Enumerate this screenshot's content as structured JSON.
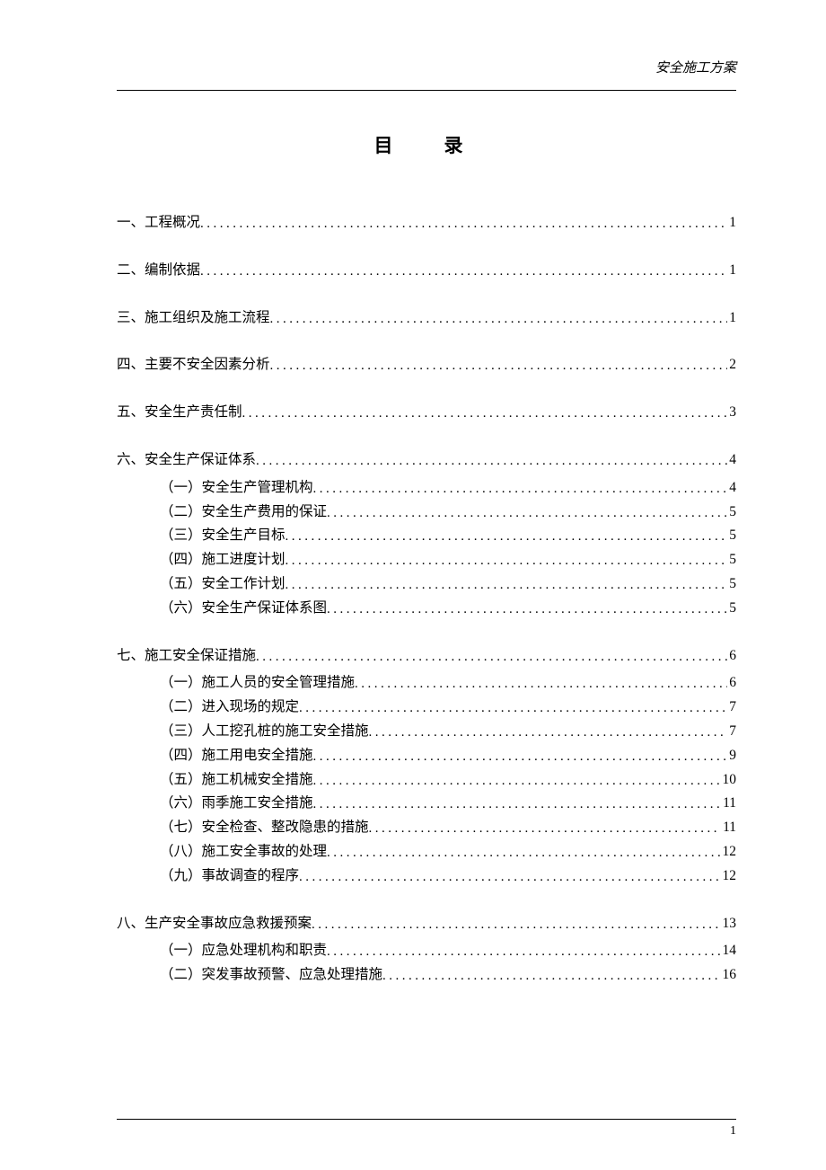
{
  "document": {
    "running_head": "安全施工方案",
    "title": "目　录",
    "page_number": "1",
    "colors": {
      "text": "#000000",
      "background": "#ffffff",
      "rule": "#000000"
    },
    "typography": {
      "body_family": "SimSun",
      "body_size_pt": 12,
      "title_size_pt": 16,
      "title_weight": "bold",
      "running_head_style": "italic"
    }
  },
  "toc": [
    {
      "level": 0,
      "label": "一、工程概况",
      "page": "1",
      "children": []
    },
    {
      "level": 0,
      "label": "二、编制依据",
      "page": "1",
      "children": []
    },
    {
      "level": 0,
      "label": "三、施工组织及施工流程",
      "page": "1",
      "children": []
    },
    {
      "level": 0,
      "label": "四、主要不安全因素分析",
      "page": "2",
      "children": []
    },
    {
      "level": 0,
      "label": "五、安全生产责任制",
      "page": "3",
      "children": []
    },
    {
      "level": 0,
      "label": "六、安全生产保证体系",
      "page": "4",
      "children": [
        {
          "level": 1,
          "label": "（一）安全生产管理机构",
          "page": "4"
        },
        {
          "level": 1,
          "label": "（二）安全生产费用的保证 ",
          "page": "5"
        },
        {
          "level": 1,
          "label": "（三）安全生产目标 ",
          "page": "5"
        },
        {
          "level": 1,
          "label": "（四）施工进度计划 ",
          "page": "5"
        },
        {
          "level": 1,
          "label": "（五）安全工作计划 ",
          "page": "5"
        },
        {
          "level": 1,
          "label": "（六）安全生产保证体系图 ",
          "page": "5"
        }
      ]
    },
    {
      "level": 0,
      "label": "七、施工安全保证措施",
      "page": "6",
      "children": [
        {
          "level": 1,
          "label": "（一）施工人员的安全管理措施",
          "page": "6"
        },
        {
          "level": 1,
          "label": "（二）进入现场的规定 ",
          "page": "7"
        },
        {
          "level": 1,
          "label": "（三）人工挖孔桩的施工安全措施",
          "page": "7"
        },
        {
          "level": 1,
          "label": "（四）施工用电安全措施",
          "page": "9"
        },
        {
          "level": 1,
          "label": "（五）施工机械安全措施",
          "page": "10"
        },
        {
          "level": 1,
          "label": "（六）雨季施工安全措施",
          "page": "11"
        },
        {
          "level": 1,
          "label": "（七）安全检查、整改隐患的措施",
          "page": "11"
        },
        {
          "level": 1,
          "label": "（八）施工安全事故的处理 ",
          "page": "12"
        },
        {
          "level": 1,
          "label": "（九）事故调查的程序 ",
          "page": "12"
        }
      ]
    },
    {
      "level": 0,
      "label": "八、生产安全事故应急救援预案",
      "page": "13",
      "children": [
        {
          "level": 1,
          "label": "（一）应急处理机构和职责 ",
          "page": "14"
        },
        {
          "level": 1,
          "label": "（二）突发事故预警、应急处理措施 ",
          "page": "16"
        }
      ]
    }
  ]
}
